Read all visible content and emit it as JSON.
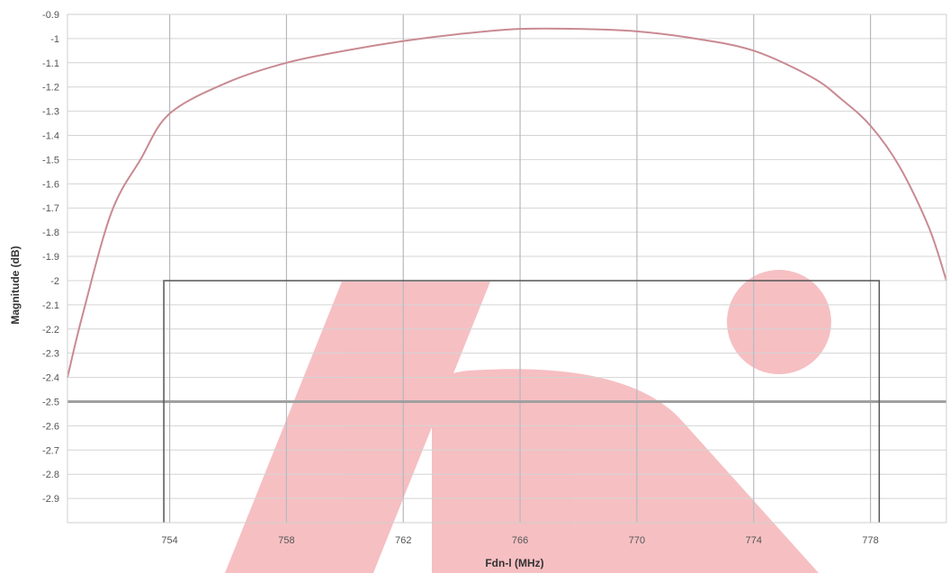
{
  "colors": {
    "curve": "#c98a92",
    "grid": "#d4d4d4",
    "grid_vertical": "#b8b8c0",
    "mask": "#555555",
    "highlight": "#a0a0a0",
    "watermark": "#f4b0b4",
    "axis_text": "#555555"
  },
  "chart_data": {
    "type": "line",
    "title": "",
    "xlabel": "Fdn-l (MHz)",
    "ylabel": "Magnitude (dB)",
    "xlim": [
      750.5,
      780.6
    ],
    "ylim": [
      -3.0,
      -0.9
    ],
    "x_ticks": [
      {
        "value": 754,
        "label": "754"
      },
      {
        "value": 758,
        "label": "758"
      },
      {
        "value": 762,
        "label": "762"
      },
      {
        "value": 766,
        "label": "766"
      },
      {
        "value": 770,
        "label": "770"
      },
      {
        "value": 774,
        "label": "774"
      },
      {
        "value": 778,
        "label": "778"
      }
    ],
    "y_ticks": [
      {
        "value": -0.9,
        "label": "-0.9"
      },
      {
        "value": -1.0,
        "label": "-1"
      },
      {
        "value": -1.1,
        "label": "-1.1"
      },
      {
        "value": -1.2,
        "label": "-1.2"
      },
      {
        "value": -1.3,
        "label": "-1.3"
      },
      {
        "value": -1.4,
        "label": "-1.4"
      },
      {
        "value": -1.5,
        "label": "-1.5"
      },
      {
        "value": -1.6,
        "label": "-1.6"
      },
      {
        "value": -1.7,
        "label": "-1.7"
      },
      {
        "value": -1.8,
        "label": "-1.8"
      },
      {
        "value": -1.9,
        "label": "-1.9"
      },
      {
        "value": -2.0,
        "label": "-2"
      },
      {
        "value": -2.1,
        "label": "-2.1"
      },
      {
        "value": -2.2,
        "label": "-2.2"
      },
      {
        "value": -2.3,
        "label": "-2.3"
      },
      {
        "value": -2.4,
        "label": "-2.4"
      },
      {
        "value": -2.5,
        "label": "-2.5"
      },
      {
        "value": -2.6,
        "label": "-2.6"
      },
      {
        "value": -2.7,
        "label": "-2.7"
      },
      {
        "value": -2.8,
        "label": "-2.8"
      },
      {
        "value": -2.9,
        "label": "-2.9"
      }
    ],
    "grid": true,
    "series": [
      {
        "x": [
          750.5,
          751.0,
          752.0,
          753.0,
          754.0,
          756.0,
          758.0,
          760.0,
          762.0,
          764.0,
          766.0,
          768.0,
          770.0,
          772.0,
          774.0,
          776.0,
          777.0,
          778.0,
          779.0,
          780.0,
          780.6
        ],
        "y": [
          -2.4,
          -2.15,
          -1.72,
          -1.5,
          -1.31,
          -1.18,
          -1.1,
          -1.05,
          -1.01,
          -0.98,
          -0.96,
          -0.96,
          -0.97,
          -1.0,
          -1.05,
          -1.16,
          -1.25,
          -1.36,
          -1.53,
          -1.78,
          -2.0
        ]
      }
    ],
    "mask": {
      "x_min": 753.8,
      "x_max": 778.3,
      "y_level": -2.0
    },
    "reference_line": -2.5
  }
}
